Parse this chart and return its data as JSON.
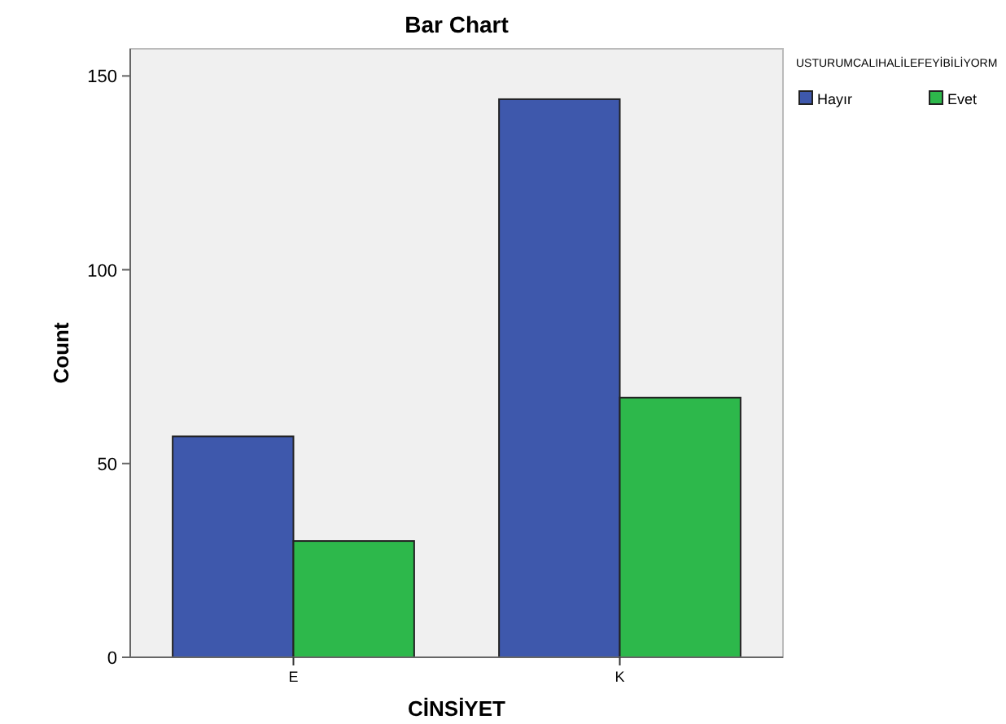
{
  "chart_data": {
    "type": "bar",
    "title": "Bar Chart",
    "xlabel": "CİNSİYET",
    "ylabel": "Count",
    "legend_title": "USTURUMCALIHALİLEFEYİBİLİYORM",
    "categories": [
      "E",
      "K"
    ],
    "series": [
      {
        "name": "Hayır",
        "color": "#3e58ac",
        "values": [
          57,
          144
        ]
      },
      {
        "name": "Evet",
        "color": "#2db84b",
        "values": [
          30,
          67
        ]
      }
    ],
    "ylim": [
      0,
      157
    ],
    "yticks": [
      0,
      50,
      100,
      150
    ],
    "grid": false,
    "legend": "top right"
  }
}
